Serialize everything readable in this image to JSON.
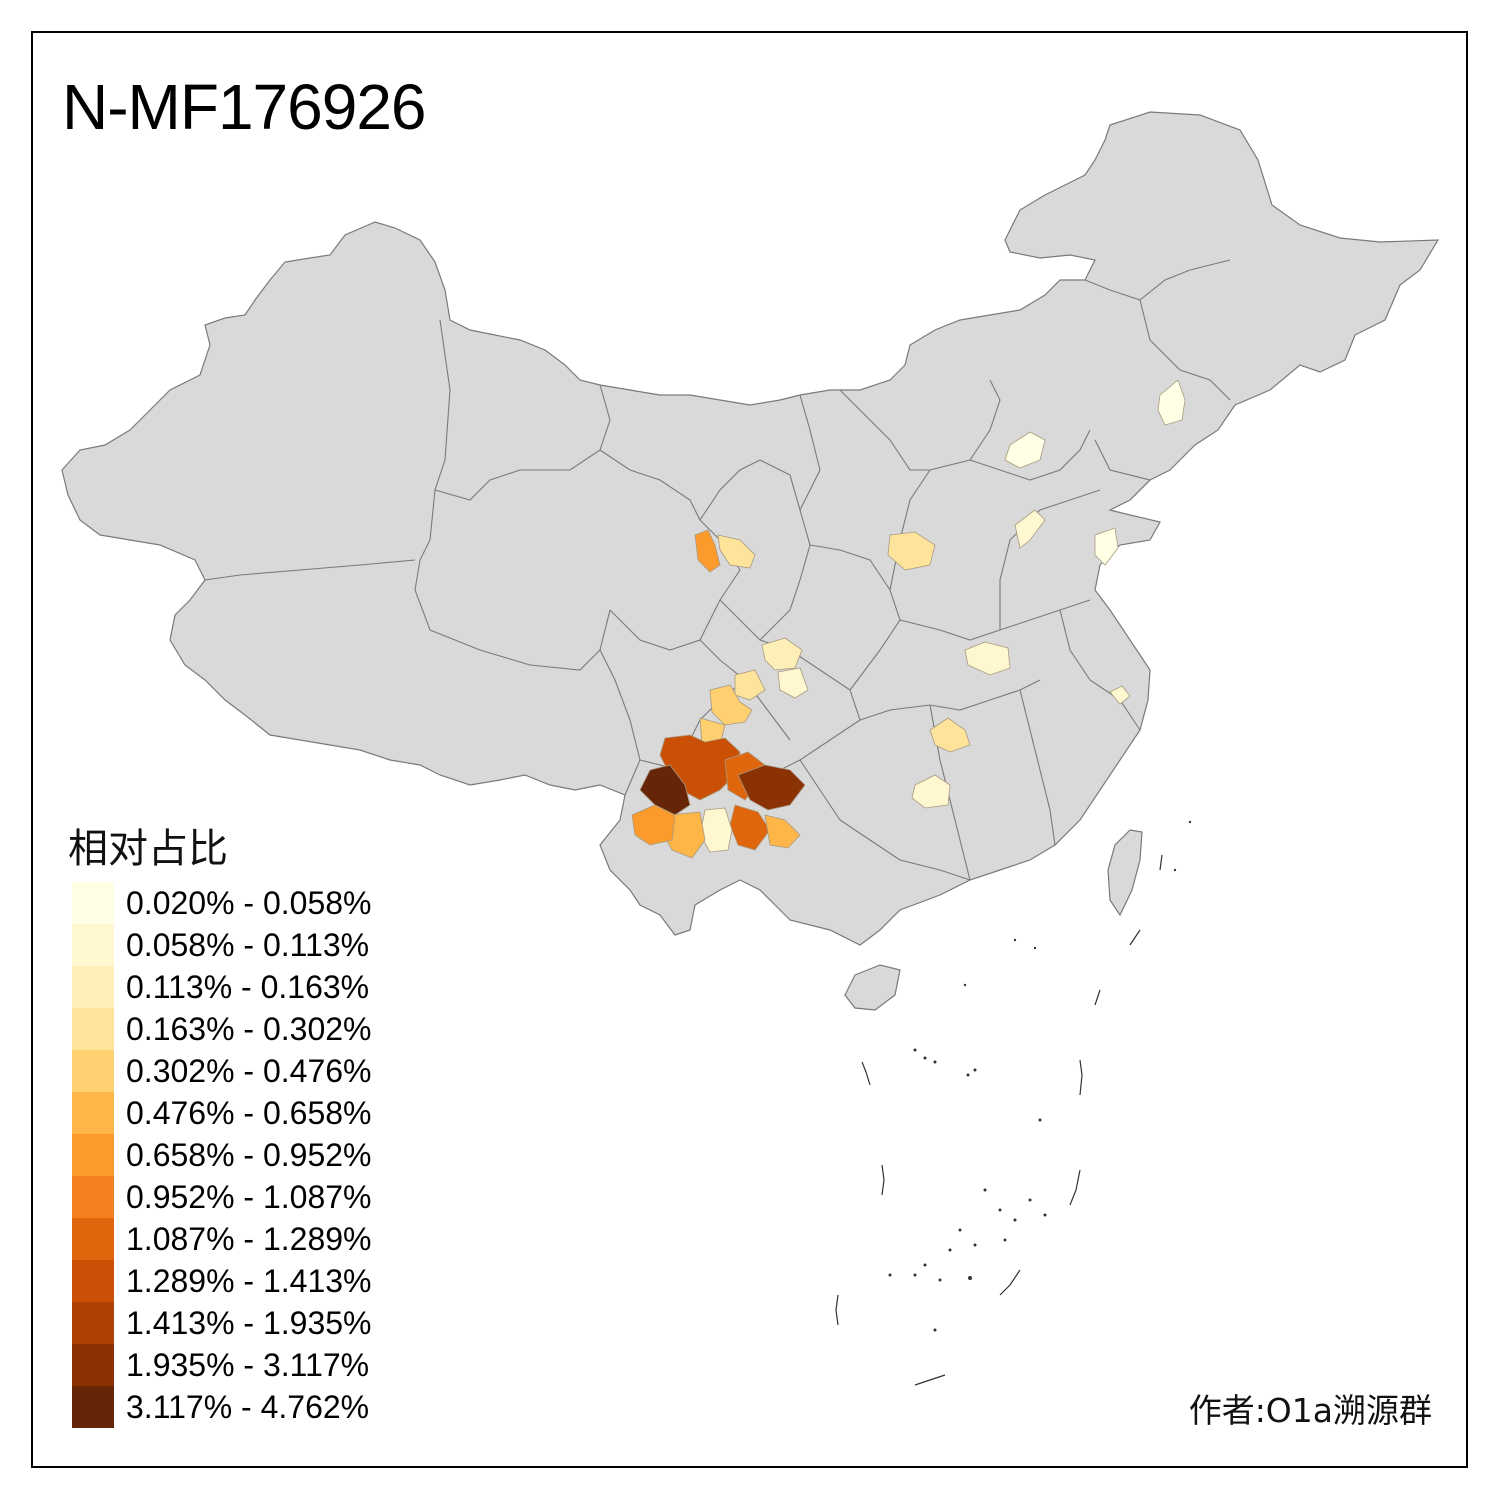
{
  "title": "N-MF176926",
  "legend": {
    "title": "相对占比",
    "items": [
      {
        "label": "0.020% - 0.058%",
        "color": "#ffffe5"
      },
      {
        "label": "0.058% - 0.113%",
        "color": "#fff7cf"
      },
      {
        "label": "0.113% - 0.163%",
        "color": "#feefb8"
      },
      {
        "label": "0.163% - 0.302%",
        "color": "#fee39b"
      },
      {
        "label": "0.302% - 0.476%",
        "color": "#fed06f"
      },
      {
        "label": "0.476% - 0.658%",
        "color": "#feb648"
      },
      {
        "label": "0.658% - 0.952%",
        "color": "#fc9a2c"
      },
      {
        "label": "0.952% - 1.087%",
        "color": "#f2801c"
      },
      {
        "label": "1.087% - 1.289%",
        "color": "#e0660e"
      },
      {
        "label": "1.289% - 1.413%",
        "color": "#ca5005"
      },
      {
        "label": "1.413% - 1.935%",
        "color": "#ad4003"
      },
      {
        "label": "1.935% - 3.117%",
        "color": "#8a3204"
      },
      {
        "label": "3.117% - 4.762%",
        "color": "#662506"
      }
    ]
  },
  "author": "作者:O1a溯源群",
  "colors": {
    "land": "#d9d9d9",
    "border": "#7a7a7a",
    "frame": "#000000"
  }
}
